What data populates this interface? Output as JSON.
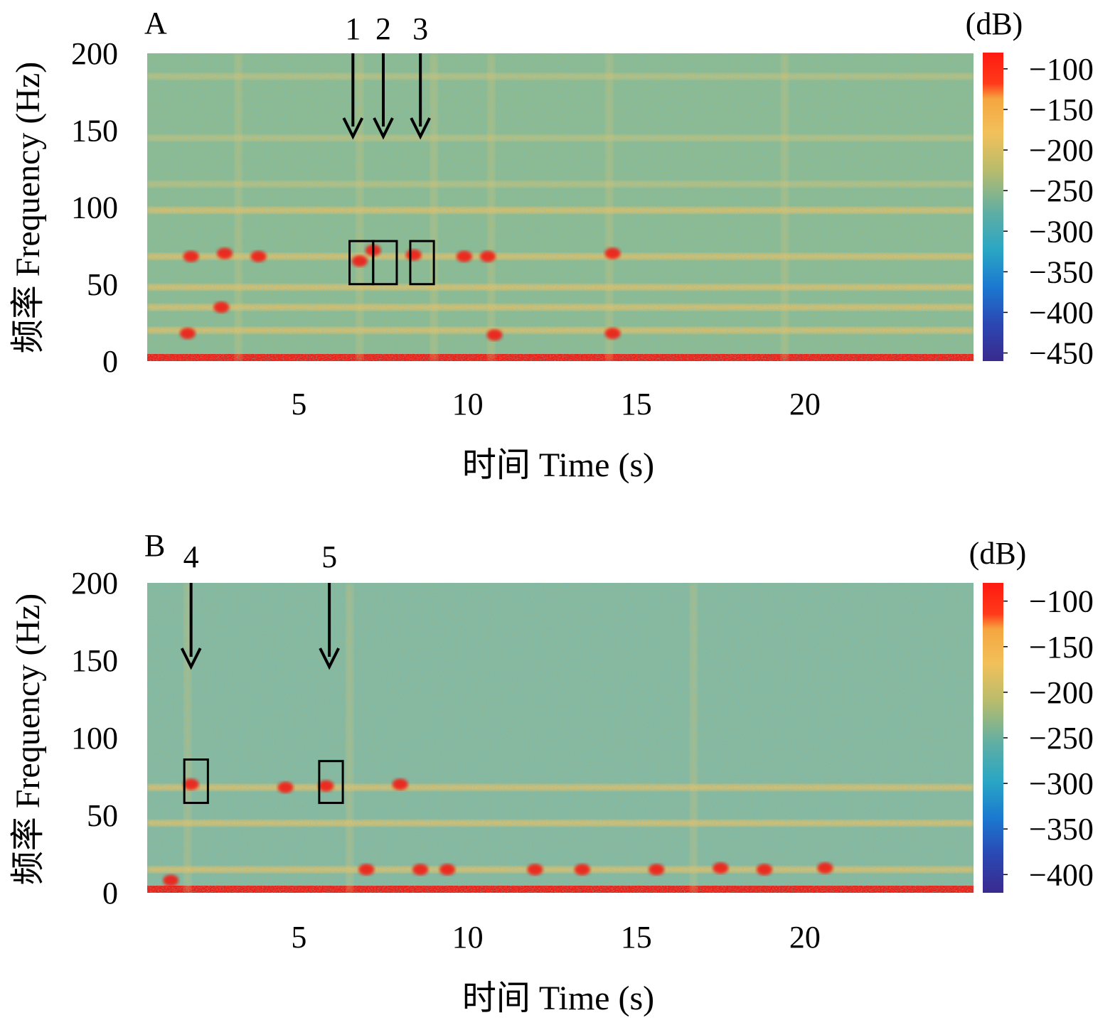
{
  "chart_data": [
    {
      "type": "heatmap",
      "panel": "A",
      "title": "",
      "xlabel": "时间 Time (s)",
      "ylabel": "频率 Frequency (Hz)",
      "xlim": [
        0.5,
        25
      ],
      "ylim": [
        0,
        200
      ],
      "xticks": [
        5,
        10,
        15,
        20
      ],
      "yticks": [
        0,
        50,
        100,
        150,
        200
      ],
      "colorbar": {
        "unit": "(dB)",
        "range": [
          -460,
          -80
        ],
        "ticks": [
          -100,
          -150,
          -200,
          -250,
          -300,
          -350,
          -400,
          -450
        ]
      },
      "bands": [
        {
          "freq": 5,
          "level": "high"
        },
        {
          "freq": 20,
          "level": "mid"
        },
        {
          "freq": 35,
          "level": "mid"
        },
        {
          "freq": 48,
          "level": "mid"
        },
        {
          "freq": 68,
          "level": "mid"
        },
        {
          "freq": 98,
          "level": "mid"
        },
        {
          "freq": 115,
          "level": "low"
        },
        {
          "freq": 145,
          "level": "low"
        },
        {
          "freq": 185,
          "level": "low"
        }
      ],
      "events": [
        {
          "time": 1.8,
          "freq": 68
        },
        {
          "time": 2.8,
          "freq": 70
        },
        {
          "time": 3.8,
          "freq": 68
        },
        {
          "time": 1.7,
          "freq": 18
        },
        {
          "time": 2.7,
          "freq": 35
        },
        {
          "time": 6.8,
          "freq": 65
        },
        {
          "time": 7.2,
          "freq": 72
        },
        {
          "time": 8.4,
          "freq": 69
        },
        {
          "time": 9.9,
          "freq": 68
        },
        {
          "time": 10.6,
          "freq": 68
        },
        {
          "time": 10.8,
          "freq": 17
        },
        {
          "time": 14.3,
          "freq": 18
        },
        {
          "time": 14.3,
          "freq": 70
        }
      ],
      "vertical_streaks": [
        3.2,
        6.8,
        9.0,
        10.7,
        14.2,
        19.4
      ],
      "arrows": [
        {
          "label": "1",
          "time": 6.6
        },
        {
          "label": "2",
          "time": 7.5
        },
        {
          "label": "3",
          "time": 8.6
        }
      ],
      "boxes": [
        {
          "t0": 6.5,
          "t1": 7.2,
          "f0": 50,
          "f1": 78
        },
        {
          "t0": 7.2,
          "t1": 7.9,
          "f0": 50,
          "f1": 78
        },
        {
          "t0": 8.3,
          "t1": 9.0,
          "f0": 50,
          "f1": 78
        }
      ]
    },
    {
      "type": "heatmap",
      "panel": "B",
      "title": "",
      "xlabel": "时间 Time (s)",
      "ylabel": "频率 Frequency (Hz)",
      "xlim": [
        0.5,
        25
      ],
      "ylim": [
        0,
        200
      ],
      "xticks": [
        5,
        10,
        15,
        20
      ],
      "yticks": [
        0,
        50,
        100,
        150,
        200
      ],
      "colorbar": {
        "unit": "(dB)",
        "range": [
          -420,
          -80
        ],
        "ticks": [
          -100,
          -150,
          -200,
          -250,
          -300,
          -350,
          -400
        ]
      },
      "bands": [
        {
          "freq": 5,
          "level": "high"
        },
        {
          "freq": 15,
          "level": "mid"
        },
        {
          "freq": 45,
          "level": "mid"
        },
        {
          "freq": 68,
          "level": "mid"
        }
      ],
      "events": [
        {
          "time": 1.2,
          "freq": 8
        },
        {
          "time": 1.8,
          "freq": 70
        },
        {
          "time": 5.8,
          "freq": 69
        },
        {
          "time": 4.6,
          "freq": 68
        },
        {
          "time": 8.0,
          "freq": 70
        },
        {
          "time": 7.0,
          "freq": 15
        },
        {
          "time": 8.6,
          "freq": 15
        },
        {
          "time": 9.4,
          "freq": 15
        },
        {
          "time": 12.0,
          "freq": 15
        },
        {
          "time": 13.4,
          "freq": 15
        },
        {
          "time": 15.6,
          "freq": 15
        },
        {
          "time": 17.5,
          "freq": 16
        },
        {
          "time": 18.8,
          "freq": 15
        },
        {
          "time": 20.6,
          "freq": 16
        }
      ],
      "vertical_streaks": [
        1.7,
        6.5,
        16.7
      ],
      "arrows": [
        {
          "label": "4",
          "time": 1.8
        },
        {
          "label": "5",
          "time": 5.9
        }
      ],
      "boxes": [
        {
          "t0": 1.6,
          "t1": 2.3,
          "f0": 58,
          "f1": 86
        },
        {
          "t0": 5.6,
          "t1": 6.3,
          "f0": 58,
          "f1": 85
        }
      ]
    }
  ],
  "labels": {
    "panel_a": "A",
    "panel_b": "B",
    "x_title": "时间 Time (s)",
    "y_title": "频率 Frequency (Hz)",
    "unit": "(dB)"
  }
}
